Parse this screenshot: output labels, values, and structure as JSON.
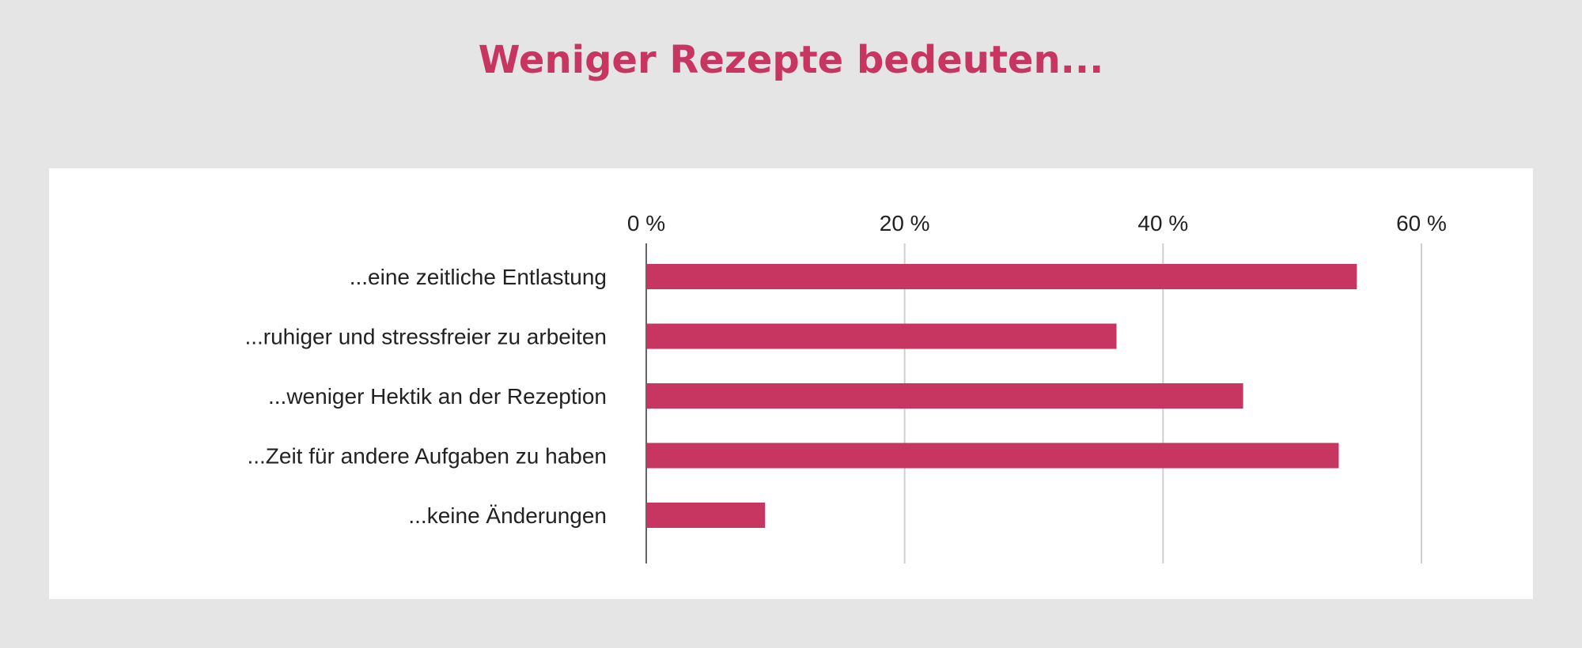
{
  "chart_data": {
    "type": "bar",
    "orientation": "horizontal",
    "title": "Weniger Rezepte bedeuten...",
    "categories": [
      "...eine zeitliche Entlastung",
      "...ruhiger und stressfreier zu arbeiten",
      "...weniger Hektik an der Rezeption",
      "...Zeit für andere Aufgaben zu haben",
      "...keine Änderungen"
    ],
    "values": [
      55,
      36.4,
      46.2,
      53.6,
      9.2
    ],
    "xticks": [
      0,
      20,
      40,
      60
    ],
    "xtick_labels": [
      "0 %",
      "20 %",
      "40 %",
      "60 %"
    ],
    "xlim": [
      0,
      60
    ],
    "grid": true,
    "axis_position": "top",
    "bar_color": "#c73661"
  }
}
